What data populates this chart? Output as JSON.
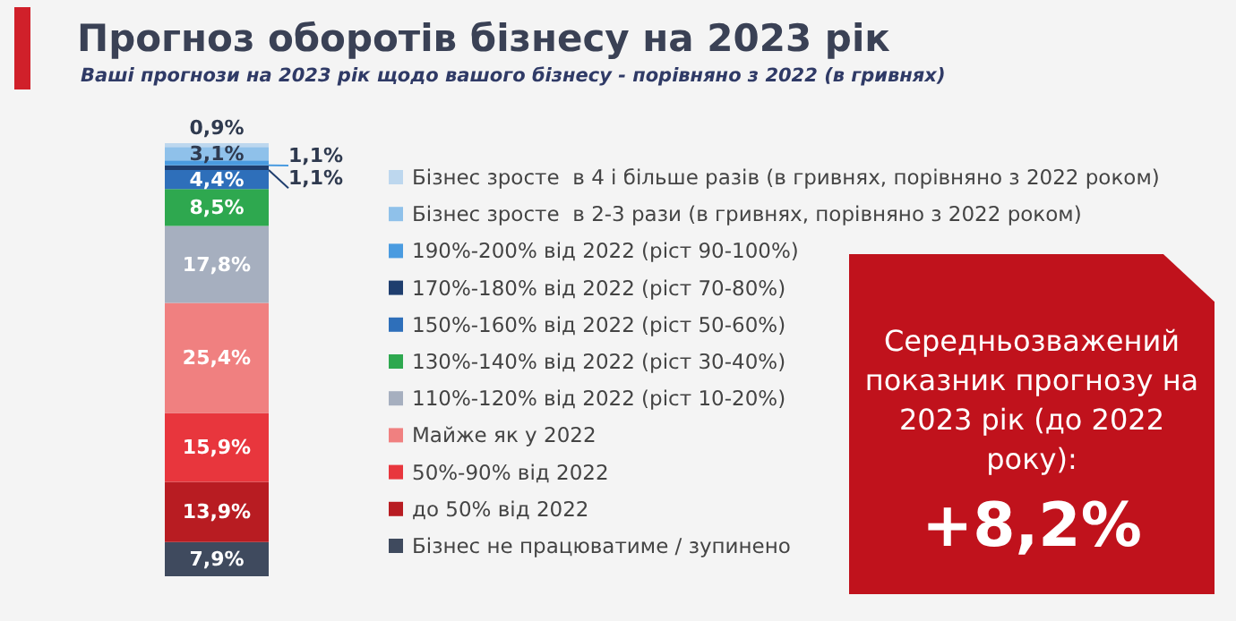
{
  "chart_data": {
    "type": "bar",
    "stacked": true,
    "title": "Прогноз оборотів бізнесу на 2023 рік",
    "subtitle": "Ваші прогнози на 2023 рік щодо вашого бізнесу - порівняно з 2022 (в гривнях)",
    "categories": [
      null
    ],
    "tick_labels": false,
    "legend": "right",
    "series": [
      {
        "name": "Бізнес не працюватиме / зупинено",
        "color": "#3f4a5e",
        "values": [
          7.9
        ],
        "value_labels": [
          "7,9%"
        ]
      },
      {
        "name": "до 50% від 2022",
        "color": "#b81c22",
        "values": [
          13.9
        ],
        "value_labels": [
          "13,9%"
        ]
      },
      {
        "name": "50%-90% від 2022",
        "color": "#e8363d",
        "values": [
          15.9
        ],
        "value_labels": [
          "15,9%"
        ]
      },
      {
        "name": "Майже як у 2022",
        "color": "#f08080",
        "values": [
          25.4
        ],
        "value_labels": [
          "25,4%"
        ]
      },
      {
        "name": "110%-120% від 2022 (ріст 10-20%)",
        "color": "#a6afbf",
        "values": [
          17.8
        ],
        "value_labels": [
          "17,8%"
        ]
      },
      {
        "name": "130%-140% від 2022 (ріст 30-40%)",
        "color": "#2ea84f",
        "values": [
          8.5
        ],
        "value_labels": [
          "8,5%"
        ]
      },
      {
        "name": "150%-160% від 2022 (ріст 50-60%)",
        "color": "#2e6fba",
        "values": [
          4.4
        ],
        "value_labels": [
          "4,4%"
        ]
      },
      {
        "name": "170%-180% від 2022 (ріст 70-80%)",
        "color": "#1f3e6e",
        "values": [
          1.1
        ],
        "value_labels": [
          "1,1%"
        ]
      },
      {
        "name": "190%-200% від 2022 (ріст 90-100%)",
        "color": "#4a9be0",
        "values": [
          1.1
        ],
        "value_labels": [
          "1,1%"
        ]
      },
      {
        "name": "Бізнес зросте  в 2-3 рази (в гривнях, порівняно з 2022 роком)",
        "color": "#8fc1ea",
        "values": [
          3.1
        ],
        "value_labels": [
          "3,1%"
        ]
      },
      {
        "name": "Бізнес зросте  в 4 і більше разів (в гривнях, порівняно з 2022 роком)",
        "color": "#bdd7ee",
        "values": [
          0.9
        ],
        "value_labels": [
          "0,9%"
        ]
      }
    ],
    "annotations": [
      "Середньозважений показник прогнозу на 2023 рік (до 2022 року):",
      "+8,2%"
    ]
  }
}
